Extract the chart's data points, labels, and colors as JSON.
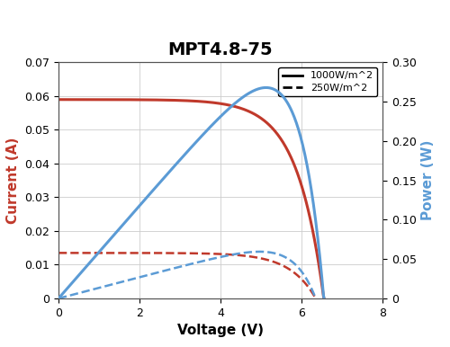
{
  "title": "MPT4.8-75",
  "xlabel": "Voltage (V)",
  "ylabel_left": "Current (A)",
  "ylabel_right": "Power (W)",
  "xlim": [
    0,
    8
  ],
  "ylim_left": [
    0,
    0.07
  ],
  "ylim_right": [
    0,
    0.3
  ],
  "yticks_left": [
    0,
    0.01,
    0.02,
    0.03,
    0.04,
    0.05,
    0.06,
    0.07
  ],
  "yticks_right": [
    0,
    0.05,
    0.1,
    0.15,
    0.2,
    0.25,
    0.3
  ],
  "xticks": [
    0,
    2,
    4,
    6,
    8
  ],
  "color_red": "#c0392b",
  "color_blue": "#5b9bd5",
  "legend_solid": "1000W/m^2",
  "legend_dashed": "250W/m^2",
  "background_color": "#ffffff",
  "iv_full_Isc": 0.059,
  "iv_full_Voc": 6.55,
  "iv_25_Isc": 0.0135,
  "iv_25_Voc": 6.35,
  "knee_sharpness_full": 10,
  "knee_sharpness_25": 10,
  "title_fontsize": 14,
  "label_fontsize": 11,
  "tick_fontsize": 9,
  "legend_fontsize": 8,
  "linewidth_solid": 2.2,
  "linewidth_dashed": 1.8,
  "grid_color": "#cccccc",
  "grid_linewidth": 0.6
}
